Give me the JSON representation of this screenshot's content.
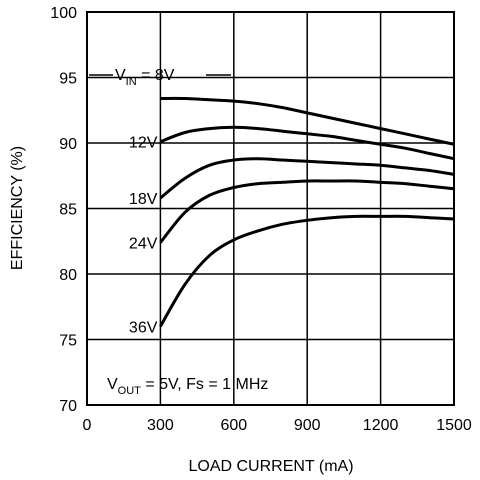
{
  "chart_data": {
    "type": "line",
    "xlabel": "LOAD CURRENT (mA)",
    "ylabel": "EFFICIENCY (%)",
    "xlim": [
      0,
      1500
    ],
    "ylim": [
      70,
      100
    ],
    "xticks": [
      "0",
      "300",
      "600",
      "900",
      "1200",
      "1500"
    ],
    "yticks": [
      "70",
      "75",
      "80",
      "85",
      "90",
      "95",
      "100"
    ],
    "grid": true,
    "annotation": {
      "prefix": "V",
      "sub": "OUT",
      "rest": " = 5V, Fs = 1 MHz"
    },
    "vin_label": {
      "prefix": "V",
      "sub": "IN",
      "rest": " = 8V"
    },
    "series": [
      {
        "label": "8V",
        "x": [
          300,
          400,
          500,
          600,
          700,
          800,
          900,
          1000,
          1100,
          1200,
          1300,
          1400,
          1500
        ],
        "y": [
          93.4,
          93.4,
          93.3,
          93.2,
          93.0,
          92.7,
          92.3,
          91.9,
          91.5,
          91.1,
          90.7,
          90.3,
          89.9
        ]
      },
      {
        "label": "12V",
        "x": [
          300,
          400,
          500,
          600,
          700,
          800,
          900,
          1000,
          1100,
          1200,
          1300,
          1400,
          1500
        ],
        "y": [
          90.1,
          90.8,
          91.1,
          91.2,
          91.1,
          90.9,
          90.7,
          90.5,
          90.2,
          89.9,
          89.6,
          89.2,
          88.8
        ]
      },
      {
        "label": "18V",
        "x": [
          300,
          400,
          500,
          600,
          700,
          800,
          900,
          1000,
          1100,
          1200,
          1300,
          1400,
          1500
        ],
        "y": [
          85.8,
          87.3,
          88.3,
          88.7,
          88.8,
          88.7,
          88.6,
          88.5,
          88.4,
          88.3,
          88.1,
          87.9,
          87.6
        ]
      },
      {
        "label": "24V",
        "x": [
          300,
          400,
          500,
          600,
          700,
          800,
          900,
          1000,
          1100,
          1200,
          1300,
          1400,
          1500
        ],
        "y": [
          82.4,
          84.7,
          86.0,
          86.6,
          86.9,
          87.0,
          87.1,
          87.1,
          87.1,
          87.0,
          86.9,
          86.7,
          86.5
        ]
      },
      {
        "label": "36V",
        "x": [
          300,
          400,
          500,
          600,
          700,
          800,
          900,
          1000,
          1100,
          1200,
          1300,
          1400,
          1500
        ],
        "y": [
          76.0,
          79.2,
          81.4,
          82.6,
          83.3,
          83.8,
          84.1,
          84.3,
          84.4,
          84.4,
          84.4,
          84.3,
          84.2
        ]
      }
    ]
  }
}
